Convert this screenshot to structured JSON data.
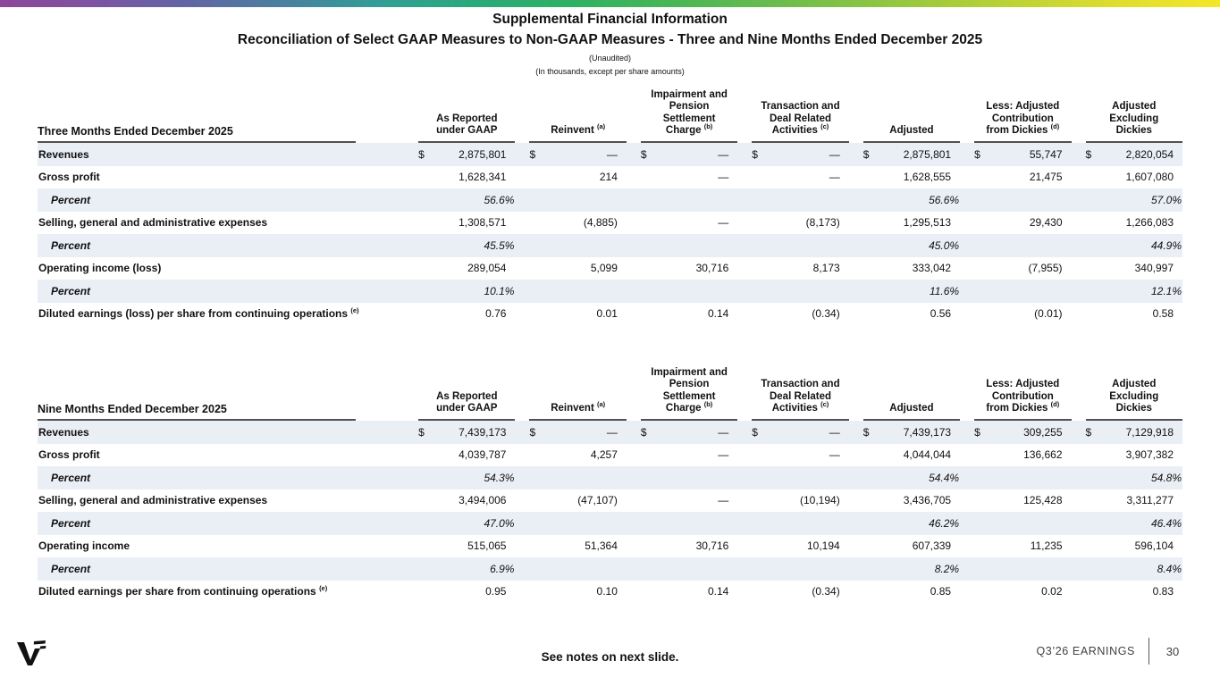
{
  "slide": {
    "title": "Supplemental Financial Information",
    "subtitle": "Reconciliation of Select GAAP Measures to Non-GAAP Measures - Three and Nine Months Ended December 2025",
    "note1": "(Unaudited)",
    "note2": "(In thousands, except per share amounts)"
  },
  "columns": [
    {
      "lines": [
        "As Reported",
        "under GAAP"
      ],
      "sup": ""
    },
    {
      "lines": [
        "Reinvent"
      ],
      "sup": "(a)"
    },
    {
      "lines": [
        "Impairment and",
        "Pension",
        "Settlement",
        "Charge"
      ],
      "sup": "(b)"
    },
    {
      "lines": [
        "Transaction and",
        "Deal Related",
        "Activities"
      ],
      "sup": "(c)"
    },
    {
      "lines": [
        "Adjusted"
      ],
      "sup": ""
    },
    {
      "lines": [
        "Less: Adjusted",
        "Contribution",
        "from Dickies"
      ],
      "sup": "(d)"
    },
    {
      "lines": [
        "Adjusted",
        "Excluding",
        "Dickies"
      ],
      "sup": ""
    }
  ],
  "tables": [
    {
      "period_label": "Three Months Ended December 2025",
      "rows": [
        {
          "label": "Revenues",
          "type": "data",
          "dollar": true,
          "values": [
            "2,875,801",
            "—",
            "—",
            "—",
            "2,875,801",
            "55,747",
            "2,820,054"
          ]
        },
        {
          "label": "Gross profit",
          "type": "data",
          "values": [
            "1,628,341",
            "214",
            "—",
            "—",
            "1,628,555",
            "21,475",
            "1,607,080"
          ]
        },
        {
          "label": "Percent",
          "type": "percent",
          "values": [
            "56.6%",
            "",
            "",
            "",
            "56.6%",
            "",
            "57.0%"
          ]
        },
        {
          "label": "Selling, general and administrative expenses",
          "type": "data",
          "values": [
            "1,308,571",
            "(4,885)",
            "—",
            "(8,173)",
            "1,295,513",
            "29,430",
            "1,266,083"
          ]
        },
        {
          "label": "Percent",
          "type": "percent",
          "values": [
            "45.5%",
            "",
            "",
            "",
            "45.0%",
            "",
            "44.9%"
          ]
        },
        {
          "label": "Operating income (loss)",
          "type": "data",
          "values": [
            "289,054",
            "5,099",
            "30,716",
            "8,173",
            "333,042",
            "(7,955)",
            "340,997"
          ]
        },
        {
          "label": "Percent",
          "type": "percent",
          "values": [
            "10.1%",
            "",
            "",
            "",
            "11.6%",
            "",
            "12.1%"
          ]
        },
        {
          "label": "Diluted earnings (loss) per share from continuing operations",
          "label_sup": "(e)",
          "type": "data",
          "values": [
            "0.76",
            "0.01",
            "0.14",
            "(0.34)",
            "0.56",
            "(0.01)",
            "0.58"
          ]
        }
      ]
    },
    {
      "period_label": "Nine Months Ended December 2025",
      "rows": [
        {
          "label": "Revenues",
          "type": "data",
          "dollar": true,
          "values": [
            "7,439,173",
            "—",
            "—",
            "—",
            "7,439,173",
            "309,255",
            "7,129,918"
          ]
        },
        {
          "label": "Gross profit",
          "type": "data",
          "values": [
            "4,039,787",
            "4,257",
            "—",
            "—",
            "4,044,044",
            "136,662",
            "3,907,382"
          ]
        },
        {
          "label": "Percent",
          "type": "percent",
          "values": [
            "54.3%",
            "",
            "",
            "",
            "54.4%",
            "",
            "54.8%"
          ]
        },
        {
          "label": "Selling, general and administrative expenses",
          "type": "data",
          "values": [
            "3,494,006",
            "(47,107)",
            "—",
            "(10,194)",
            "3,436,705",
            "125,428",
            "3,311,277"
          ]
        },
        {
          "label": "Percent",
          "type": "percent",
          "values": [
            "47.0%",
            "",
            "",
            "",
            "46.2%",
            "",
            "46.4%"
          ]
        },
        {
          "label": "Operating income",
          "type": "data",
          "values": [
            "515,065",
            "51,364",
            "30,716",
            "10,194",
            "607,339",
            "11,235",
            "596,104"
          ]
        },
        {
          "label": "Percent",
          "type": "percent",
          "values": [
            "6.9%",
            "",
            "",
            "",
            "8.2%",
            "",
            "8.4%"
          ]
        },
        {
          "label": "Diluted earnings per share from continuing operations",
          "label_sup": "(e)",
          "type": "data",
          "values": [
            "0.95",
            "0.10",
            "0.14",
            "(0.34)",
            "0.85",
            "0.02",
            "0.83"
          ]
        }
      ]
    }
  ],
  "footer": {
    "see_notes": "See notes on next slide.",
    "earnings_label": "Q3’26 EARNINGS",
    "page_number": "30"
  },
  "colors": {
    "stripe": "#eaeef5",
    "rule": "#515151",
    "gradient_start": "#8c4799",
    "gradient_mid": "#2fb163",
    "gradient_end": "#f4e72a"
  }
}
